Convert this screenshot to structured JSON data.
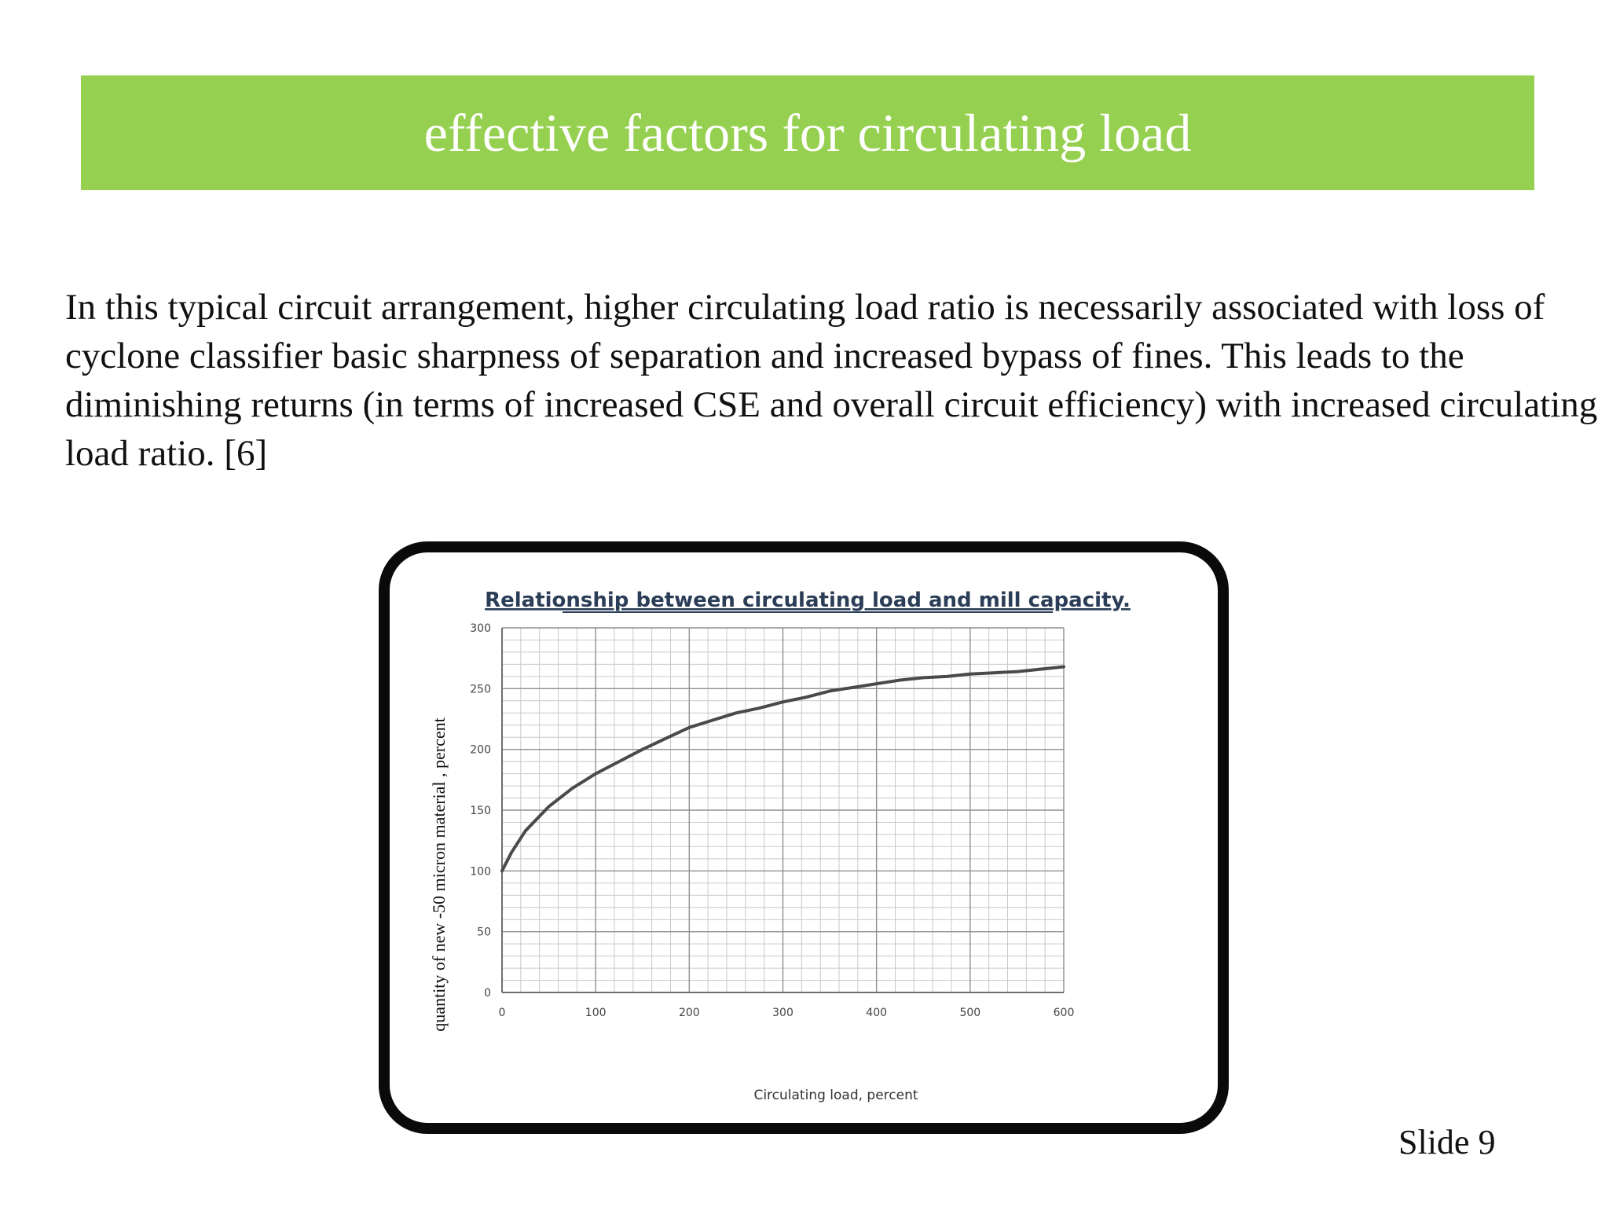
{
  "slide": {
    "title": "effective factors for circulating load",
    "body": "In this typical circuit arrangement, higher circulating load ratio is necessarily associated with loss of cyclone classifier basic sharpness of separation and increased bypass of fines. This leads to the diminishing returns (in terms of increased CSE and overall circuit efficiency) with increased circulating load ratio. [6]",
    "slide_number": "Slide 9",
    "accent_color": "#96d050"
  },
  "chart_data": {
    "type": "line",
    "title": "Relationship between circulating load and mill capacity.",
    "xlabel": "Circulating load, percent",
    "ylabel": "quantity of new -50 micron material , percent",
    "xlim": [
      0,
      600
    ],
    "ylim": [
      0,
      300
    ],
    "x_ticks": [
      "0",
      "100",
      "200",
      "300",
      "400",
      "500",
      "600"
    ],
    "y_ticks": [
      "0",
      "50",
      "100",
      "150",
      "200",
      "250",
      "300"
    ],
    "grid": true,
    "series": [
      {
        "x": [
          0,
          10,
          25,
          50,
          75,
          100,
          125,
          150,
          175,
          200,
          225,
          250,
          275,
          300,
          325,
          350,
          375,
          400,
          425,
          450,
          475,
          500,
          525,
          550,
          575,
          600
        ],
        "y": [
          100,
          115,
          133,
          153,
          168,
          180,
          190,
          200,
          209,
          218,
          224,
          230,
          234,
          239,
          243,
          248,
          251,
          254,
          257,
          259,
          260,
          262,
          263,
          264,
          266,
          268
        ]
      }
    ]
  }
}
